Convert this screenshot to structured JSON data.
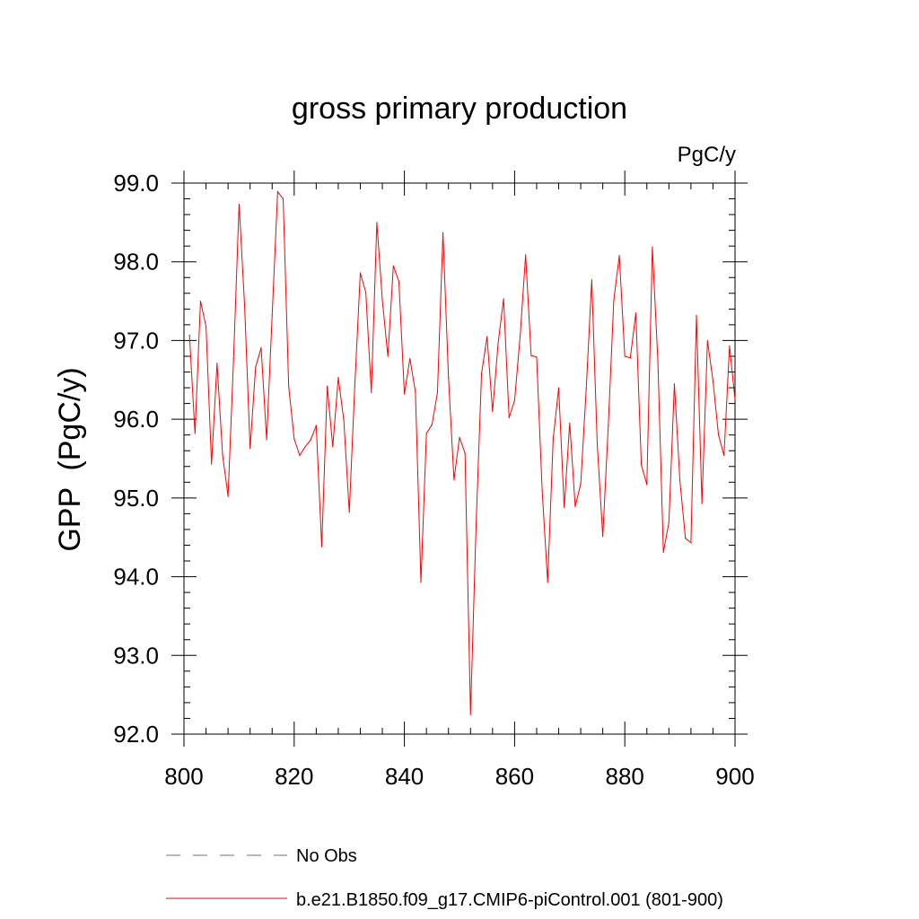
{
  "chart_data": {
    "type": "line",
    "title": "gross primary production",
    "units_label": "PgC/y",
    "ylabel": "GPP  (PgC/y)",
    "xlabel": "",
    "xlim": [
      800,
      900
    ],
    "ylim": [
      92.0,
      99.0
    ],
    "x_ticks": [
      800,
      820,
      840,
      860,
      880,
      900
    ],
    "x_tick_labels": [
      "800",
      "820",
      "840",
      "860",
      "880",
      "900"
    ],
    "y_ticks": [
      92,
      93,
      94,
      95,
      96,
      97,
      98,
      99
    ],
    "y_tick_labels": [
      "92.0",
      "93.0",
      "94.0",
      "95.0",
      "96.0",
      "97.0",
      "98.0",
      "99.0"
    ],
    "grid": false,
    "legend_position": "bottom",
    "series": [
      {
        "name": "b.e21.B1850.f09_g17.CMIP6-piControl.001 (801-900)",
        "color": "#ff0000",
        "style": "solid",
        "x": [
          801,
          802,
          803,
          804,
          805,
          806,
          807,
          808,
          809,
          810,
          811,
          812,
          813,
          814,
          815,
          816,
          817,
          818,
          819,
          820,
          821,
          822,
          823,
          824,
          825,
          826,
          827,
          828,
          829,
          830,
          831,
          832,
          833,
          834,
          835,
          836,
          837,
          838,
          839,
          840,
          841,
          842,
          843,
          844,
          845,
          846,
          847,
          848,
          849,
          850,
          851,
          852,
          853,
          854,
          855,
          856,
          857,
          858,
          859,
          860,
          861,
          862,
          863,
          864,
          865,
          866,
          867,
          868,
          869,
          870,
          871,
          872,
          873,
          874,
          875,
          876,
          877,
          878,
          879,
          880,
          881,
          882,
          883,
          884,
          885,
          886,
          887,
          888,
          889,
          890,
          891,
          892,
          893,
          894,
          895,
          896,
          897,
          898,
          899,
          900
        ],
        "values": [
          97.07,
          95.82,
          97.5,
          97.18,
          95.43,
          96.71,
          95.55,
          95.02,
          96.77,
          98.73,
          97.45,
          95.63,
          96.66,
          96.91,
          95.74,
          97.32,
          98.89,
          98.8,
          96.42,
          95.75,
          95.54,
          95.65,
          95.74,
          95.92,
          94.38,
          96.42,
          95.65,
          96.53,
          95.99,
          94.82,
          96.43,
          97.86,
          97.61,
          96.34,
          98.5,
          97.51,
          96.8,
          97.95,
          97.75,
          96.32,
          96.77,
          96.35,
          93.93,
          95.82,
          95.93,
          96.34,
          98.37,
          96.53,
          95.23,
          95.77,
          95.57,
          92.25,
          94.63,
          96.58,
          97.05,
          96.1,
          96.96,
          97.53,
          96.02,
          96.24,
          97.05,
          98.09,
          96.81,
          96.79,
          95.1,
          93.93,
          95.75,
          96.4,
          94.88,
          95.95,
          94.89,
          95.18,
          96.39,
          97.77,
          95.68,
          94.51,
          95.92,
          97.51,
          98.08,
          96.8,
          96.78,
          97.35,
          95.42,
          95.17,
          98.19,
          96.74,
          94.31,
          94.69,
          96.45,
          95.22,
          94.49,
          94.43,
          97.32,
          94.93,
          97.0,
          96.49,
          95.8,
          95.54,
          96.93,
          96.25
        ]
      },
      {
        "name": "No Obs",
        "color": "#6a6aa8",
        "style": "dashed",
        "x": [],
        "values": []
      }
    ]
  }
}
